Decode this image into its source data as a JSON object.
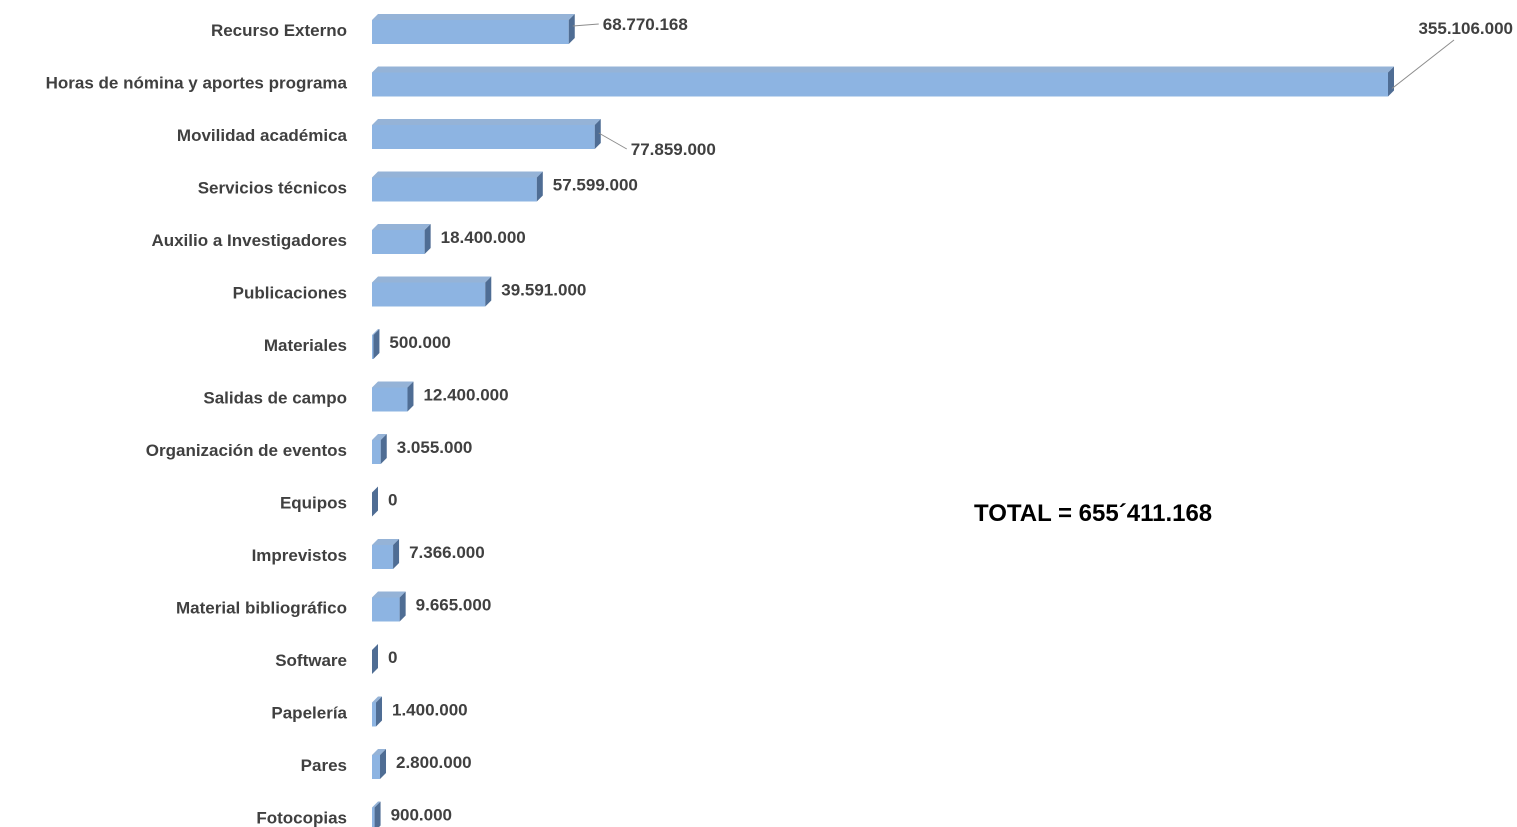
{
  "chart_data": {
    "type": "bar",
    "orientation": "horizontal",
    "style": "3d",
    "title": "",
    "xlabel": "",
    "ylabel": "",
    "grid": false,
    "legend": "none",
    "categories": [
      "Recurso Externo",
      "Horas de nómina y aportes programa",
      "Movilidad académica",
      "Servicios técnicos",
      "Auxilio a Investigadores",
      "Publicaciones",
      "Materiales",
      "Salidas de campo",
      "Organización de eventos",
      "Equipos",
      "Imprevistos",
      "Material bibliográfico",
      "Software",
      "Papelería",
      "Pares",
      "Fotocopias"
    ],
    "values": [
      68770168,
      355106000,
      77859000,
      57599000,
      18400000,
      39591000,
      500000,
      12400000,
      3055000,
      0,
      7366000,
      9665000,
      0,
      1400000,
      2800000,
      900000
    ],
    "value_labels": [
      "68.770.168",
      "355.106.000",
      "77.859.000",
      "57.599.000",
      "18.400.000",
      "39.591.000",
      "500.000",
      "12.400.000",
      "3.055.000",
      "0",
      "7.366.000",
      "9.665.000",
      "0",
      "1.400.000",
      "2.800.000",
      "900.000"
    ],
    "xlim": [
      0,
      355106000
    ],
    "annotation": "TOTAL = 655´411.168",
    "colors": {
      "bar_front": "#8db4e2",
      "bar_top": "#95b3d7",
      "bar_side": "#4f6d94",
      "leader_line": "#8c8c8c",
      "label_text": "#404040"
    }
  }
}
